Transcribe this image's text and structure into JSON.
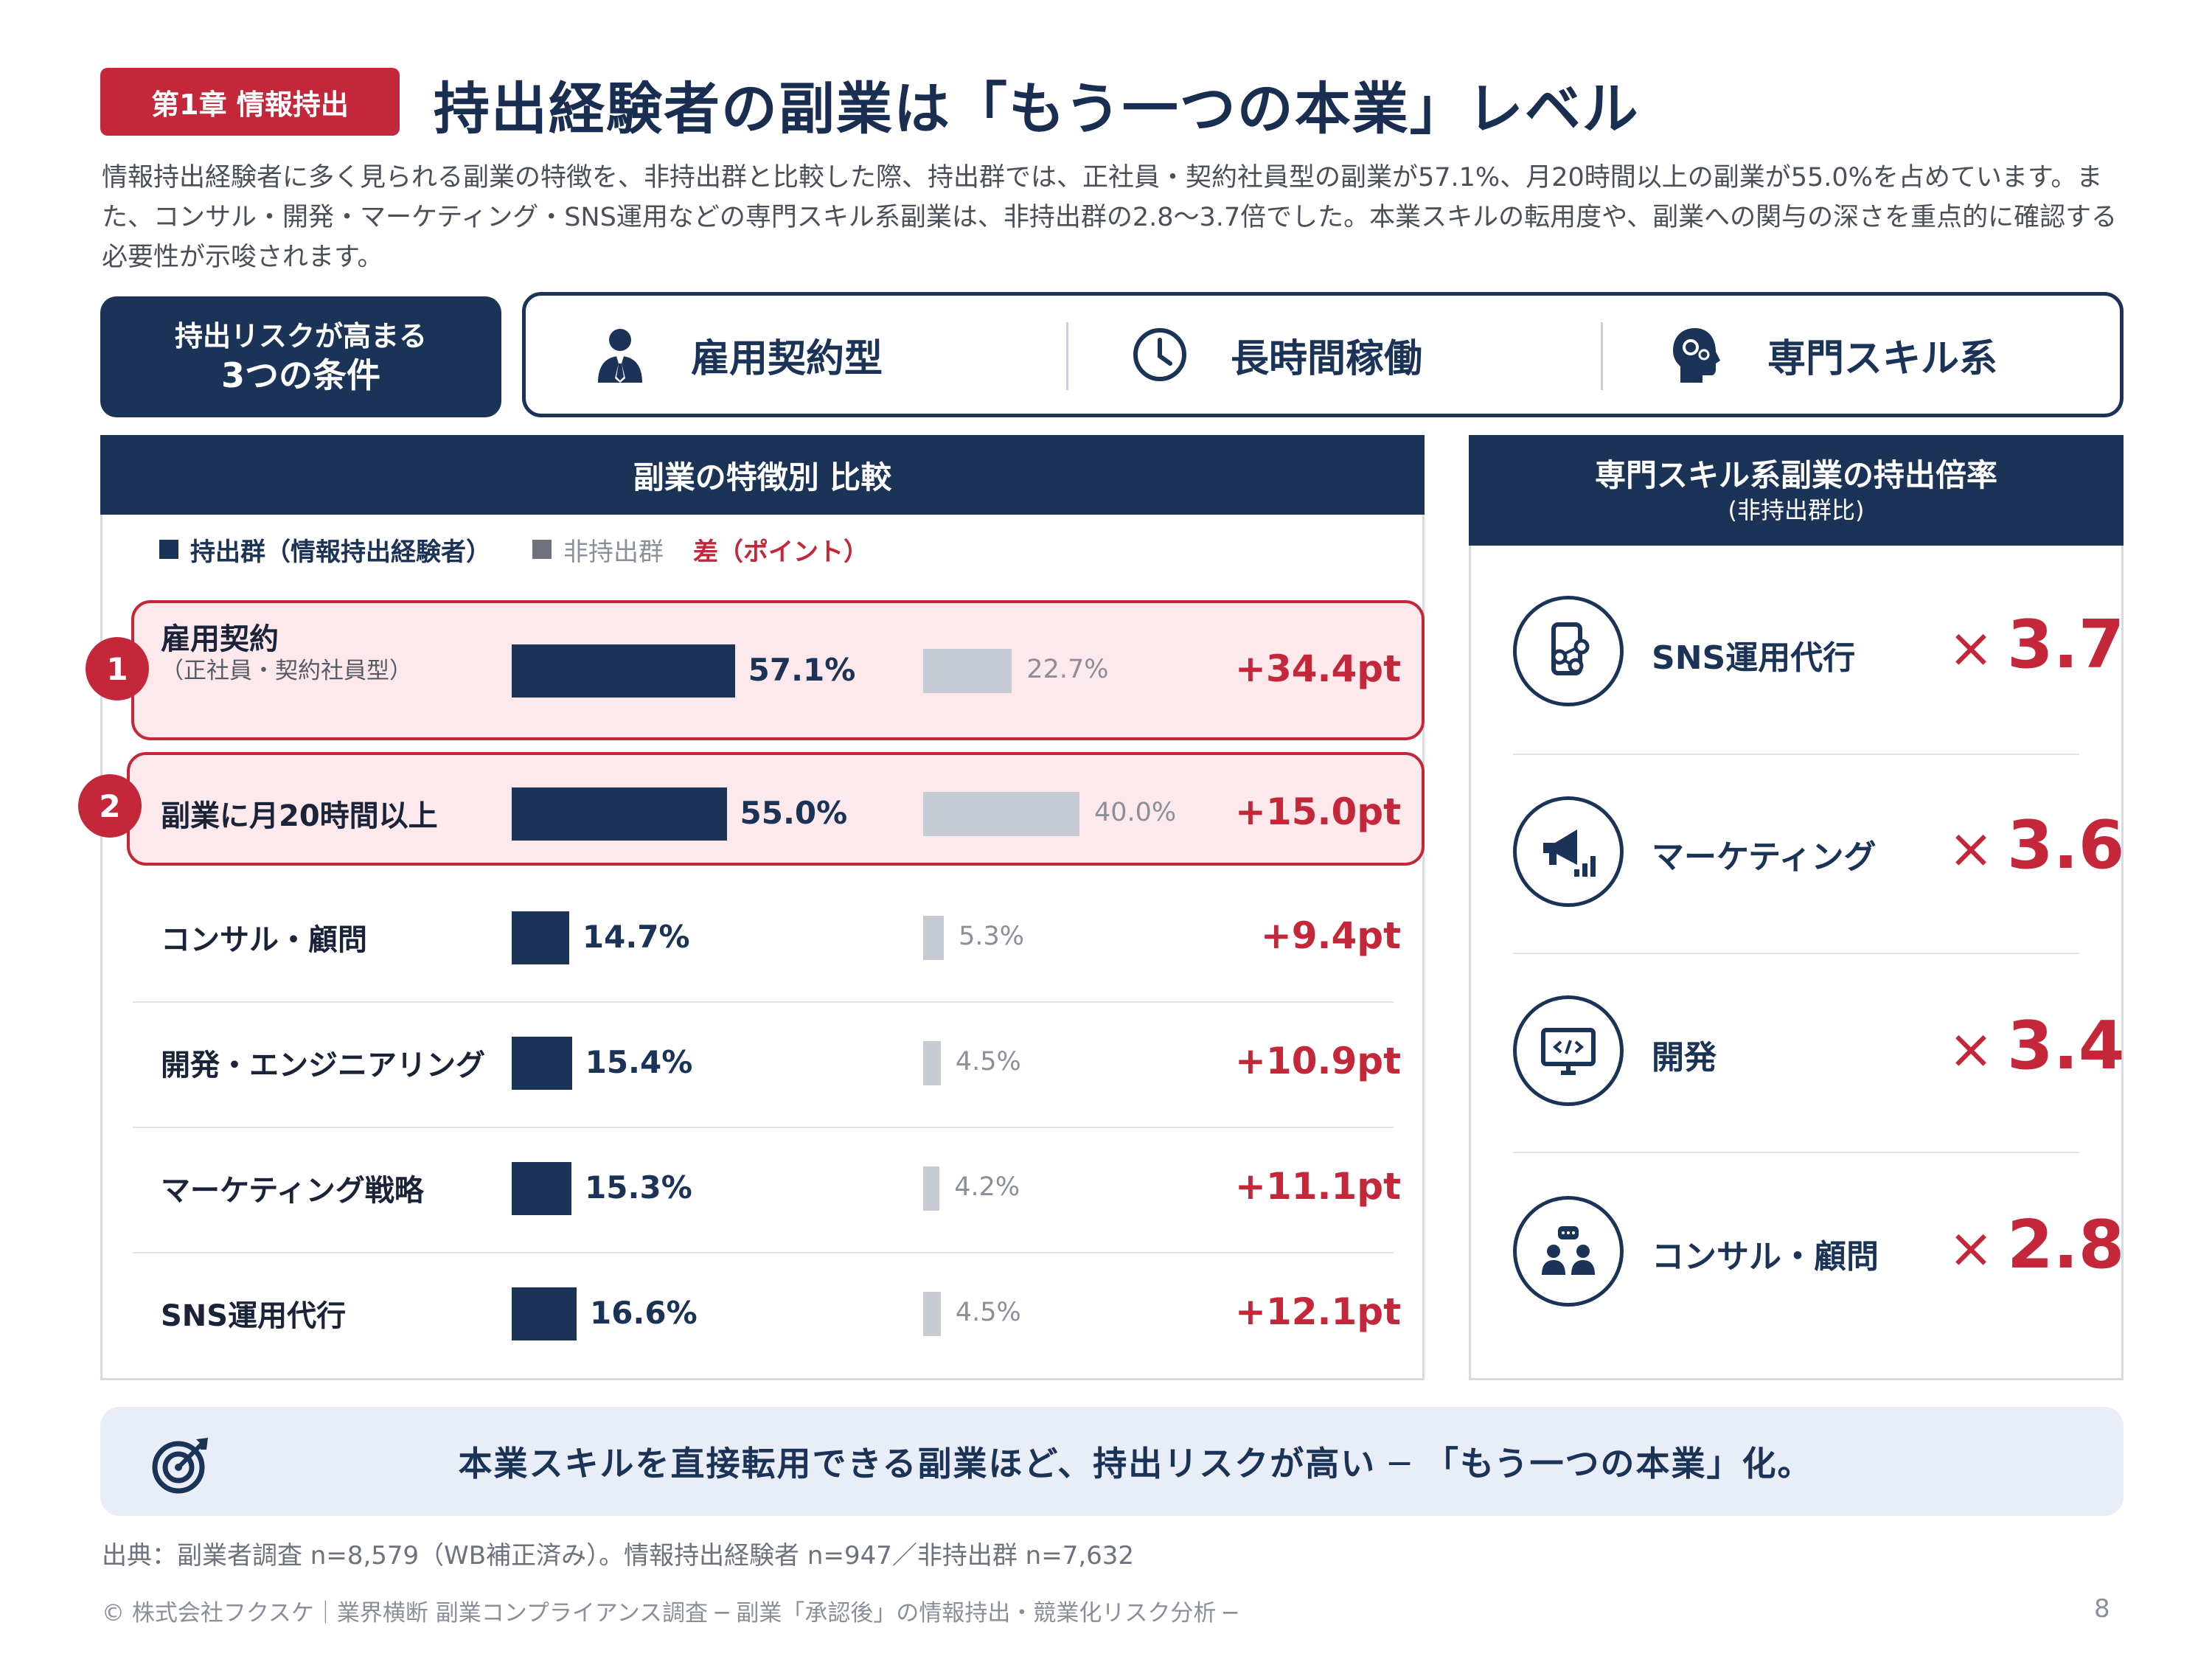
{
  "header": {
    "chapter": "第1章 情報持出",
    "title": "持出経験者の副業は「もう一つの本業」レベル",
    "lead": "情報持出経験者に多く見られる副業の特徴を、非持出群と比較した際、持出群では、正社員・契約社員型の副業が57.1%、月20時間以上の副業が55.0%を占めています。また、コンサル・開発・マーケティング・SNS運用などの専門スキル系副業は、非持出群の2.8〜3.7倍でした。本業スキルの転用度や、副業への関与の深さを重点的に確認する必要性が示唆されます。"
  },
  "conditions": {
    "label_line1": "持出リスクが高まる",
    "label_line2": "3つの条件",
    "items": [
      {
        "label": "雇用契約型",
        "icon": "businessman-icon"
      },
      {
        "label": "長時間稼働",
        "icon": "clock-icon"
      },
      {
        "label": "専門スキル系",
        "icon": "head-gears-icon"
      }
    ]
  },
  "comparison": {
    "title": "副業の特徴別 比較",
    "legend": {
      "series1": "持出群（情報持出経験者）",
      "series2": "非持出群",
      "diff": "差（ポイント）"
    },
    "rows": [
      {
        "badge": "1",
        "label": "雇用契約",
        "sublabel": "（正社員・契約社員型）",
        "v1": "57.1%",
        "v2": "22.7%",
        "diff": "+34.4pt"
      },
      {
        "badge": "2",
        "label": "副業に月20時間以上",
        "sublabel": "",
        "v1": "55.0%",
        "v2": "40.0%",
        "diff": "+15.0pt"
      },
      {
        "badge": "",
        "label": "コンサル・顧問",
        "sublabel": "",
        "v1": "14.7%",
        "v2": "5.3%",
        "diff": "+9.4pt"
      },
      {
        "badge": "",
        "label": "開発・エンジニアリング",
        "sublabel": "",
        "v1": "15.4%",
        "v2": "4.5%",
        "diff": "+10.9pt"
      },
      {
        "badge": "",
        "label": "マーケティング戦略",
        "sublabel": "",
        "v1": "15.3%",
        "v2": "4.2%",
        "diff": "+11.1pt"
      },
      {
        "badge": "",
        "label": "SNS運用代行",
        "sublabel": "",
        "v1": "16.6%",
        "v2": "4.5%",
        "diff": "+12.1pt"
      }
    ]
  },
  "chart_data": {
    "type": "bar",
    "categories": [
      "雇用契約（正社員・契約社員型）",
      "副業に月20時間以上",
      "コンサル・顧問",
      "開発・エンジニアリング",
      "マーケティング戦略",
      "SNS運用代行"
    ],
    "series": [
      {
        "name": "持出群（情報持出経験者）",
        "values": [
          57.1,
          55.0,
          14.7,
          15.4,
          15.3,
          16.6
        ]
      },
      {
        "name": "非持出群",
        "values": [
          22.7,
          40.0,
          5.3,
          4.5,
          4.2,
          4.5
        ]
      }
    ],
    "diff_series": {
      "name": "差（ポイント）",
      "values": [
        34.4,
        15.0,
        9.4,
        10.9,
        11.1,
        12.1
      ]
    },
    "title": "副業の特徴別 比較",
    "orientation": "horizontal",
    "xlim": [
      0,
      100
    ]
  },
  "multipliers": {
    "title": "専門スキル系副業の持出倍率",
    "subtitle": "(非持出群比)",
    "x_symbol": "×",
    "items": [
      {
        "label": "SNS運用代行",
        "value": "3.7",
        "icon": "smartphone-share-icon"
      },
      {
        "label": "マーケティング",
        "value": "3.6",
        "icon": "megaphone-chart-icon"
      },
      {
        "label": "開発",
        "value": "3.4",
        "icon": "monitor-code-icon"
      },
      {
        "label": "コンサル・顧問",
        "value": "2.8",
        "icon": "people-chat-icon"
      }
    ]
  },
  "conclusion": {
    "text": "本業スキルを直接転用できる副業ほど、持出リスクが高い ─ 「もう一つの本業」化。",
    "icon": "target-icon"
  },
  "source": "出典：副業者調査 n=8,579（WB補正済み）。情報持出経験者 n=947／非持出群 n=7,632",
  "footer": "© 株式会社フクスケ｜業界横断 副業コンプライアンス調査 ─ 副業「承認後」の情報持出・競業化リスク分析 ─",
  "page_number": "8",
  "colors": {
    "navy": "#1c3358",
    "red": "#c4273a",
    "gray_bar": "#c6cad3",
    "highlight_bg": "#fde8ec"
  }
}
